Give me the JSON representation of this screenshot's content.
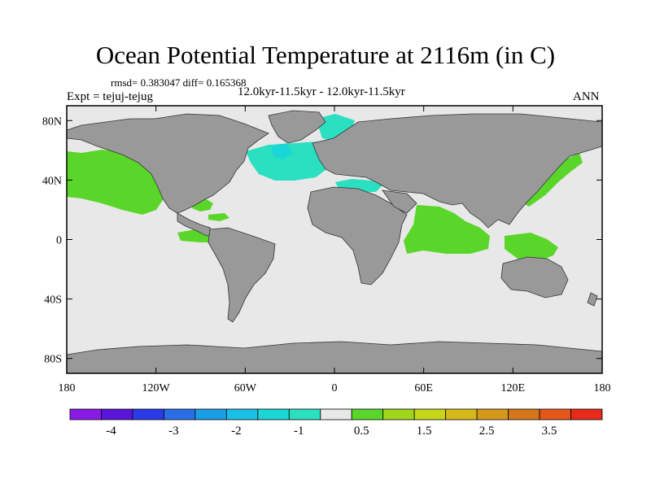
{
  "header": {
    "title": "Ocean Potential Temperature at 2116m (in C)",
    "stats": "rmsd= 0.383047 diff= 0.165368",
    "period": "12.0kyr-11.5kyr - 12.0kyr-11.5kyr",
    "experiment": "Expt = tejuj-tejug",
    "season": "ANN"
  },
  "map": {
    "lon_range": [
      -180,
      180
    ],
    "lat_range": [
      -90,
      90
    ],
    "land_color": "#999999",
    "background_value_color": "#e8e8e8",
    "x_ticks": [
      "180",
      "120W",
      "60W",
      "0",
      "60E",
      "120E",
      "180"
    ],
    "y_ticks": [
      "80N",
      "40N",
      "0",
      "40S",
      "80S"
    ],
    "y_tick_values": [
      80,
      40,
      0,
      -40,
      -80
    ],
    "regions": [
      {
        "name": "north-pacific-warm",
        "value": 0.75
      },
      {
        "name": "tropical-pacific-warm",
        "value": 0.75
      },
      {
        "name": "indian-ocean-warm",
        "value": 0.75
      },
      {
        "name": "maritime-continent-warm",
        "value": 0.75
      },
      {
        "name": "nw-pacific-warm",
        "value": 0.75
      },
      {
        "name": "caribbean-warm",
        "value": 0.75
      },
      {
        "name": "mediterranean-cool",
        "value": -0.75
      },
      {
        "name": "nordic-seas-cool",
        "value": -0.75
      },
      {
        "name": "north-atlantic-cool",
        "value": -0.75
      },
      {
        "name": "labrador-sea-cool",
        "value": -1.25
      }
    ]
  },
  "colorbar": {
    "colors": [
      "#8a1ae6",
      "#5a16d8",
      "#2a3ae6",
      "#2a6ee6",
      "#1a9ee6",
      "#1ac0e6",
      "#1ad6d6",
      "#2ae0c0",
      "#e8e8e8",
      "#5ad62a",
      "#a0d61a",
      "#c8d61a",
      "#d6b81a",
      "#d6981a",
      "#d6761a",
      "#e6561a",
      "#e62a1a"
    ],
    "labels": [
      "-4",
      "-3",
      "-2",
      "-1",
      "0.5",
      "1.5",
      "2.5",
      "3.5"
    ]
  }
}
